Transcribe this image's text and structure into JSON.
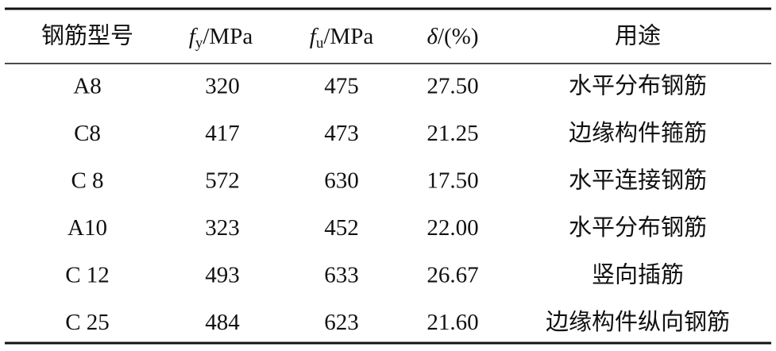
{
  "table": {
    "header": [
      {
        "text": "钢筋型号"
      },
      {
        "symbol": "f",
        "subscript": "y",
        "unit": "/MPa"
      },
      {
        "symbol": "f",
        "subscript": "u",
        "unit": "/MPa"
      },
      {
        "symbol": "δ",
        "unit": "/(%)"
      },
      {
        "text": "用途"
      }
    ],
    "rows": [
      [
        "A8",
        "320",
        "475",
        "27.50",
        "水平分布钢筋"
      ],
      [
        "C8",
        "417",
        "473",
        "21.25",
        "边缘构件箍筋"
      ],
      [
        "C 8",
        "572",
        "630",
        "17.50",
        "水平连接钢筋"
      ],
      [
        "A10",
        "323",
        "452",
        "22.00",
        "水平分布钢筋"
      ],
      [
        "C 12",
        "493",
        "633",
        "26.67",
        "竖向插筋"
      ],
      [
        "C 25",
        "484",
        "623",
        "21.60",
        "边缘构件纵向钢筋"
      ]
    ]
  }
}
